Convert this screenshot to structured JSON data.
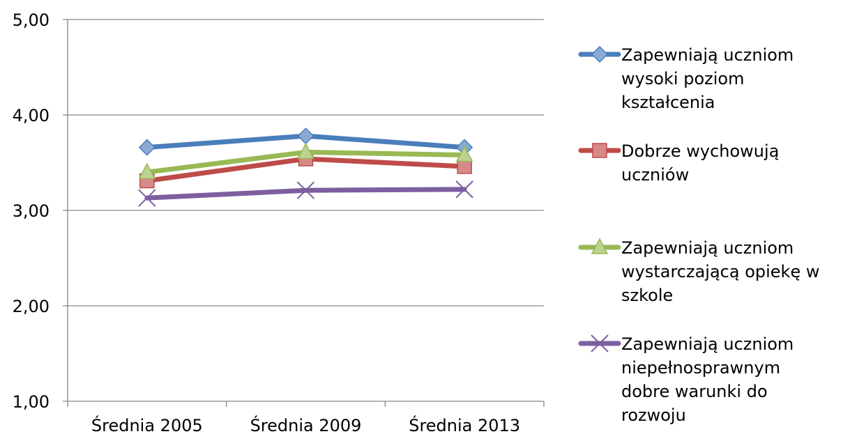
{
  "chart_data": {
    "type": "line",
    "categories": [
      "Średnia 2005",
      "Średnia 2009",
      "Średnia 2013"
    ],
    "y_ticks": [
      "1,00",
      "2,00",
      "3,00",
      "4,00",
      "5,00"
    ],
    "ylim": [
      1,
      5
    ],
    "grid": true,
    "legend_position": "right",
    "series": [
      {
        "name": "Zapewniają uczniom wysoki poziom kształcenia",
        "legend_lines": [
          "Zapewniają uczniom",
          "wysoki poziom",
          "kształcenia"
        ],
        "values": [
          3.66,
          3.78,
          3.66
        ],
        "color": "#4a7ebb",
        "marker": "diamond"
      },
      {
        "name": "Dobrze wychowują uczniów",
        "legend_lines": [
          "Dobrze wychowują",
          "uczniów"
        ],
        "values": [
          3.31,
          3.54,
          3.46
        ],
        "color": "#be4b48",
        "marker": "square"
      },
      {
        "name": "Zapewniają uczniom wystarczającą opiekę w szkole",
        "legend_lines": [
          "Zapewniają uczniom",
          "wystarczającą opiekę w",
          "szkole"
        ],
        "values": [
          3.4,
          3.61,
          3.58
        ],
        "color": "#98b954",
        "marker": "triangle"
      },
      {
        "name": "Zapewniają uczniom niepełnosprawnym dobre warunki do rozwoju",
        "legend_lines": [
          "Zapewniają uczniom",
          "niepełnosprawnym",
          "dobre warunki do",
          "rozwoju"
        ],
        "values": [
          3.13,
          3.21,
          3.22
        ],
        "color": "#7d5fa0",
        "marker": "x"
      }
    ]
  }
}
